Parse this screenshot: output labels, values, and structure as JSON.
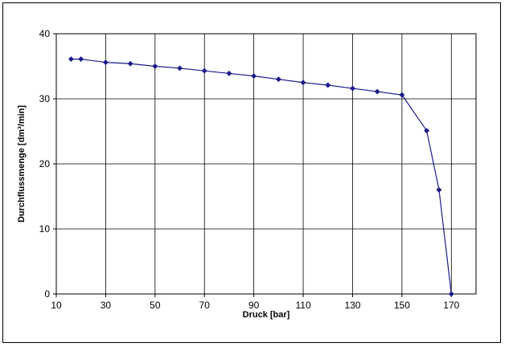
{
  "chart_data": {
    "type": "line",
    "xlabel": "Druck [bar]",
    "ylabel": "Durchflussmenge [dm³/min]",
    "xlim": [
      10,
      180
    ],
    "ylim": [
      0,
      40
    ],
    "x_ticks": [
      10,
      30,
      50,
      70,
      90,
      110,
      130,
      150,
      170
    ],
    "y_ticks": [
      0,
      10,
      20,
      30,
      40
    ],
    "grid": true,
    "series": [
      {
        "color": "#1a1a8c",
        "marker": "diamond",
        "x": [
          16,
          20,
          30,
          40,
          50,
          60,
          70,
          80,
          90,
          100,
          110,
          120,
          130,
          140,
          150,
          160,
          165,
          170
        ],
        "y": [
          36.1,
          36.1,
          35.6,
          35.4,
          35.0,
          34.7,
          34.3,
          33.9,
          33.5,
          33.0,
          32.5,
          32.1,
          31.6,
          31.1,
          30.6,
          25.1,
          16.0,
          0
        ]
      }
    ]
  }
}
